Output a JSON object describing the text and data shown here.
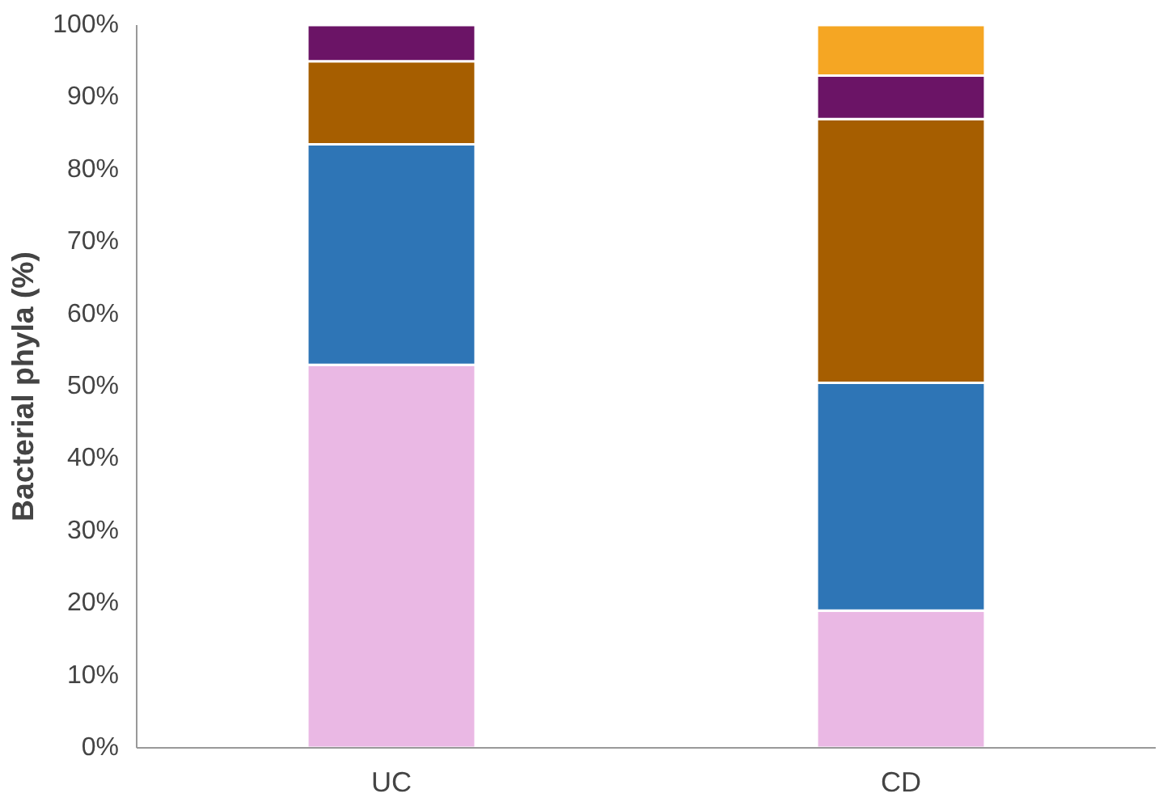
{
  "chart_data": {
    "type": "bar",
    "stacked": true,
    "ylabel": "Bacterial phyla (%)",
    "categories": [
      "UC",
      "CD"
    ],
    "series": [
      {
        "color": "#eab8e4",
        "values": [
          53,
          19
        ]
      },
      {
        "color": "#2e75b6",
        "values": [
          30.5,
          31.5
        ]
      },
      {
        "color": "#a65e00",
        "values": [
          11.5,
          36.5
        ]
      },
      {
        "color": "#6b1466",
        "values": [
          5,
          6
        ]
      },
      {
        "color": "#f5a623",
        "values": [
          null,
          7
        ]
      }
    ],
    "ylim": [
      0,
      100
    ],
    "yticks": [
      {
        "value": 0,
        "label": "0%"
      },
      {
        "value": 10,
        "label": "10%"
      },
      {
        "value": 20,
        "label": "20%"
      },
      {
        "value": 30,
        "label": "30%"
      },
      {
        "value": 40,
        "label": "40%"
      },
      {
        "value": 50,
        "label": "50%"
      },
      {
        "value": 60,
        "label": "60%"
      },
      {
        "value": 70,
        "label": "70%"
      },
      {
        "value": 80,
        "label": "80%"
      },
      {
        "value": 90,
        "label": "90%"
      },
      {
        "value": 100,
        "label": "100%"
      }
    ],
    "grid": false
  }
}
